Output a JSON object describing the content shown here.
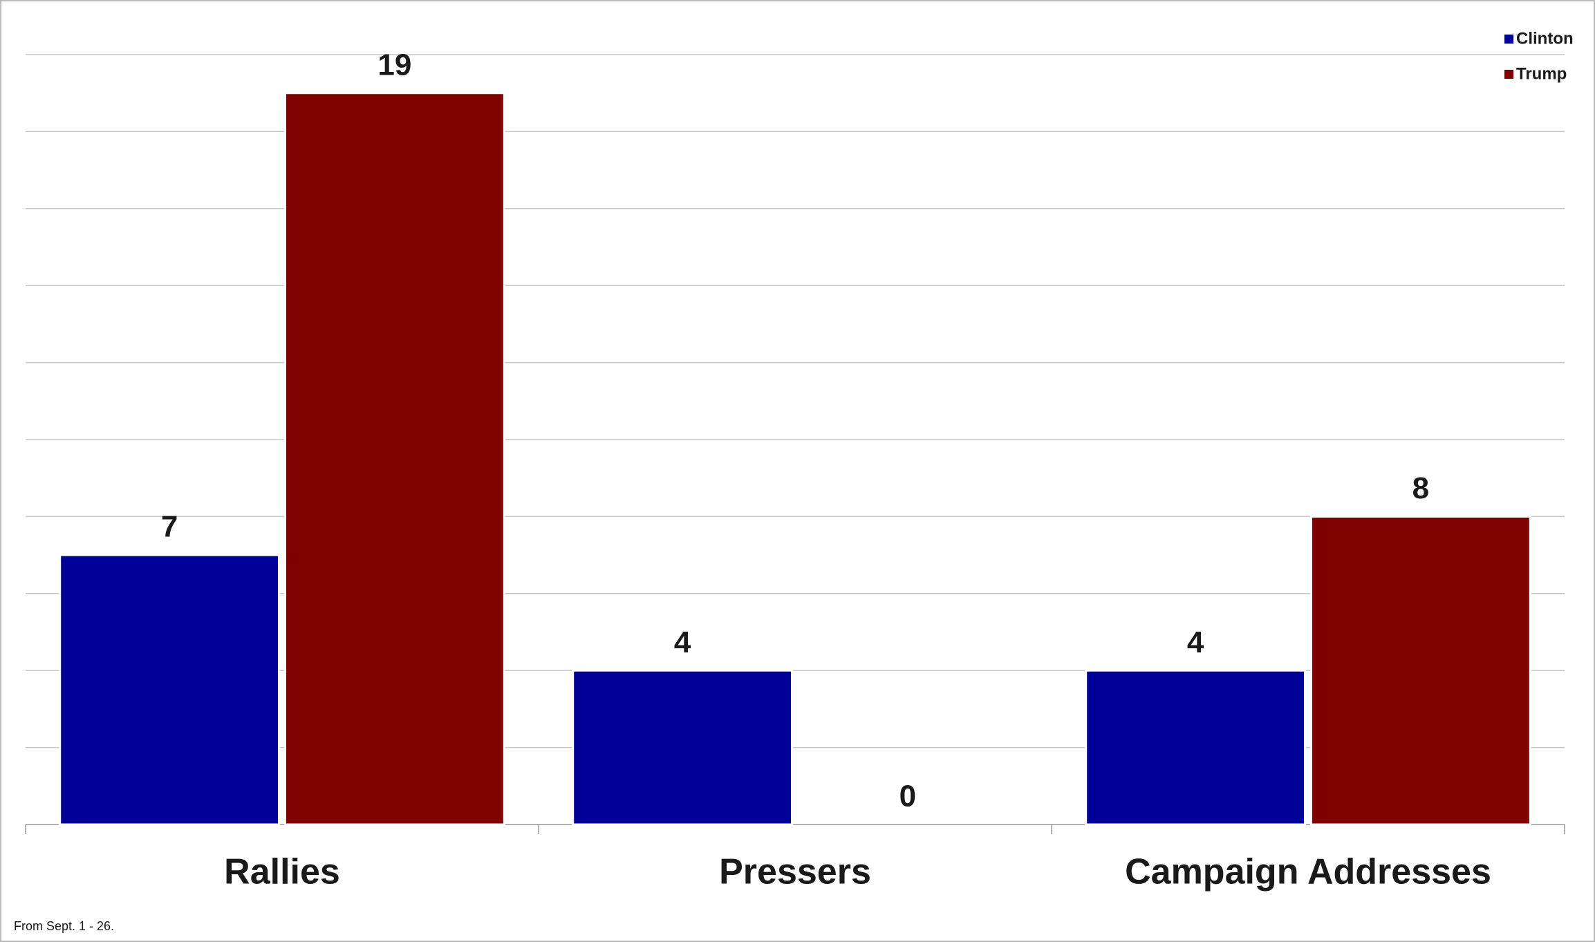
{
  "chart_data": {
    "type": "bar",
    "categories": [
      "Rallies",
      "Pressers",
      "Campaign Addresses"
    ],
    "series": [
      {
        "name": "Clinton",
        "color": "#000099",
        "values": [
          7,
          4,
          4
        ]
      },
      {
        "name": "Trump",
        "color": "#800000",
        "values": [
          19,
          0,
          8
        ]
      }
    ],
    "ylim": [
      0,
      20
    ],
    "yticks": [
      0,
      2,
      4,
      6,
      8,
      10,
      12,
      14,
      16,
      18,
      20
    ],
    "grid": true,
    "legend": "top-right",
    "note": "From Sept. 1 - 26."
  }
}
